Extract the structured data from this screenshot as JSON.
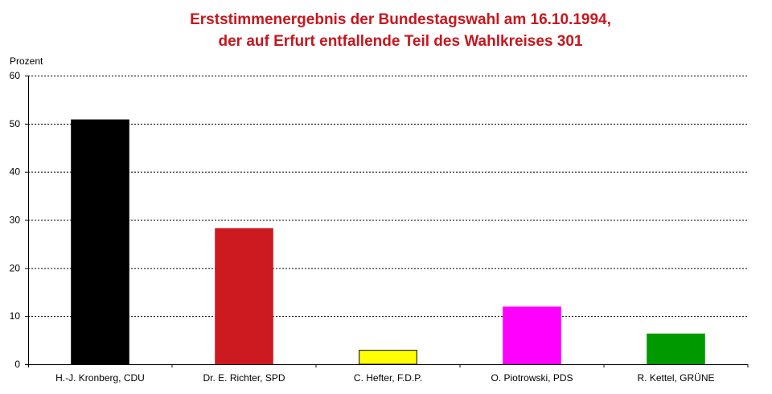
{
  "chart_data": {
    "type": "bar",
    "title_lines": [
      "Erststimmenergebnis der Bundestagswahl am 16.10.1994,",
      "der auf Erfurt entfallende Teil des Wahlkreises 301"
    ],
    "ylabel": "Prozent",
    "xlabel": "",
    "ylim": [
      0,
      60
    ],
    "yticks": [
      0,
      10,
      20,
      30,
      40,
      50,
      60
    ],
    "grid": true,
    "categories": [
      "H.-J. Kronberg, CDU",
      "Dr. E. Richter, SPD",
      "C. Hefter, F.D.P.",
      "O. Piotrowski, PDS",
      "R. Kettel, GRÜNE"
    ],
    "values": [
      50.8,
      28.2,
      2.9,
      11.9,
      6.3
    ],
    "colors": [
      "#000000",
      "#cc1a20",
      "#ffff00",
      "#ff00ff",
      "#009900"
    ],
    "title_color": "#c8161d"
  }
}
